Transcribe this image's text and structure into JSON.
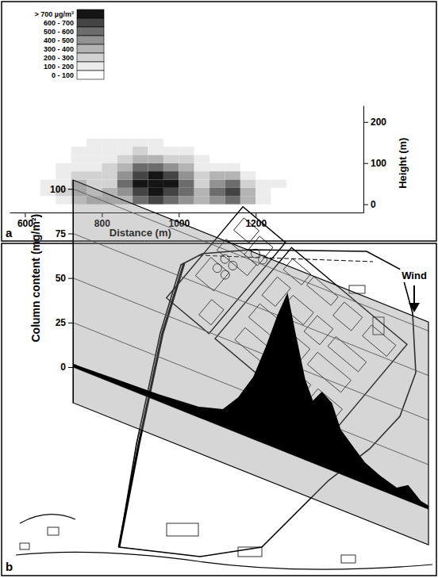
{
  "chart_data": [
    {
      "type": "heatmap",
      "label": "a",
      "xlabel": "Distance (m)",
      "ylabel": "Height (m)",
      "xlim": [
        560,
        1480
      ],
      "xticks": [
        600,
        800,
        1000,
        1200
      ],
      "ylim": [
        -20,
        240
      ],
      "yticks": [
        0,
        100,
        200
      ],
      "x_edges": [
        600,
        640,
        680,
        720,
        760,
        800,
        840,
        880,
        920,
        960,
        1000,
        1040,
        1080,
        1120,
        1160,
        1200,
        1240,
        1280
      ],
      "y_edges": [
        0,
        20,
        40,
        60,
        80,
        100,
        120,
        140,
        160,
        180
      ],
      "cells": [
        [
          50,
          80,
          150,
          250,
          320,
          300,
          380,
          520,
          600,
          550,
          420,
          300,
          480,
          520,
          300,
          120,
          60
        ],
        [
          60,
          120,
          200,
          350,
          280,
          300,
          450,
          650,
          720,
          680,
          500,
          320,
          560,
          620,
          350,
          150,
          80
        ],
        [
          40,
          100,
          180,
          300,
          250,
          280,
          520,
          720,
          780,
          740,
          520,
          280,
          480,
          550,
          250,
          100,
          120
        ],
        [
          30,
          80,
          150,
          220,
          200,
          240,
          450,
          650,
          720,
          680,
          420,
          220,
          300,
          320,
          150,
          60,
          40
        ],
        [
          20,
          60,
          120,
          180,
          160,
          220,
          350,
          500,
          520,
          480,
          300,
          150,
          150,
          150,
          80,
          30,
          20
        ],
        [
          10,
          40,
          80,
          120,
          150,
          180,
          250,
          320,
          300,
          280,
          200,
          100,
          80,
          60,
          30,
          10,
          0
        ],
        [
          0,
          20,
          50,
          100,
          120,
          150,
          180,
          200,
          180,
          150,
          120,
          60,
          30,
          20,
          10,
          0,
          0
        ],
        [
          0,
          10,
          30,
          60,
          100,
          120,
          130,
          120,
          100,
          80,
          60,
          30,
          10,
          0,
          0,
          0,
          0
        ],
        [
          0,
          0,
          10,
          30,
          60,
          80,
          90,
          70,
          50,
          40,
          20,
          10,
          0,
          0,
          0,
          0,
          0
        ]
      ],
      "colorbar": {
        "bins": [
          0,
          100,
          200,
          300,
          400,
          500,
          600,
          700
        ],
        "labels": [
          "0 - 100",
          "100 - 200",
          "200 - 300",
          "300 - 400",
          "400 - 500",
          "500 - 600",
          "600 - 700",
          "> 700 µg/m³"
        ],
        "colors": [
          "#ffffff",
          "#ececec",
          "#d2d2d2",
          "#b4b4b4",
          "#929292",
          "#6c6c6c",
          "#444444",
          "#151515"
        ]
      }
    },
    {
      "type": "area",
      "label": "b",
      "ylabel": "Column content (mg/m²)",
      "annotations": [
        "Wind"
      ],
      "xlim": [
        0,
        1400
      ],
      "ylim": [
        -20,
        105
      ],
      "yticks": [
        0,
        25,
        50,
        75,
        100
      ],
      "tick_labels": "y",
      "grid": true,
      "color": "#000000",
      "x": [
        0,
        25,
        180,
        340,
        495,
        590,
        650,
        710,
        760,
        805,
        845,
        875,
        915,
        945,
        980,
        1020,
        1055,
        1105,
        1150,
        1210,
        1275,
        1320,
        1370,
        1400
      ],
      "values": [
        2,
        2,
        3,
        4,
        6,
        10,
        20,
        35,
        55,
        75,
        90,
        70,
        45,
        35,
        42,
        38,
        25,
        18,
        12,
        8,
        5,
        9,
        3,
        2
      ]
    }
  ]
}
